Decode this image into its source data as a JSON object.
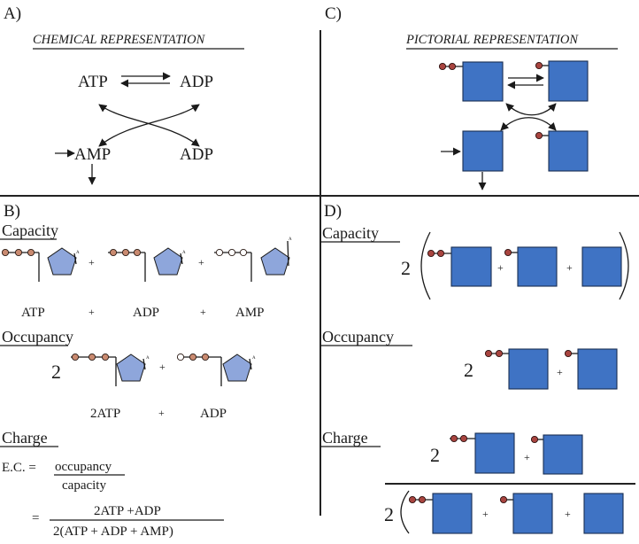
{
  "panels": {
    "a": {
      "label": "A)",
      "header": "CHEMICAL REPRESENTATION",
      "nodes": {
        "atp": "ATP",
        "adp_top": "ADP",
        "amp": "AMP",
        "adp_bottom": "ADP"
      }
    },
    "b": {
      "label": "B)",
      "capacity": {
        "title": "Capacity",
        "terms": [
          "ATP",
          "ADP",
          "AMP"
        ],
        "plus": "+",
        "sugar_mark": "A"
      },
      "occupancy": {
        "title": "Occupancy",
        "coefficient": "2",
        "terms": [
          "2ATP",
          "ADP"
        ],
        "plus": "+"
      },
      "charge": {
        "title": "Charge",
        "ec_label": "E.C. =",
        "numerator": "occupancy",
        "denominator": "capacity",
        "equals": "=",
        "numerator2": "2ATP  +ADP",
        "denominator2": "2(ATP + ADP + AMP)"
      }
    },
    "c": {
      "label": "C)",
      "header": "PICTORIAL REPRESENTATION"
    },
    "d": {
      "label": "D)",
      "capacity": {
        "title": "Capacity",
        "coefficient": "2",
        "plus": "+"
      },
      "occupancy": {
        "title": "Occupancy",
        "coefficient": "2",
        "plus": "+"
      },
      "charge": {
        "title": "Charge",
        "coefficient": "2",
        "coefficient2": "2",
        "plus": "+"
      }
    }
  },
  "colors": {
    "box_fill": "#3f73c4",
    "pentagon_fill": "#8ea6db",
    "phosphate_red": "#a8443f",
    "phosphate_tan": "#c98a70"
  }
}
